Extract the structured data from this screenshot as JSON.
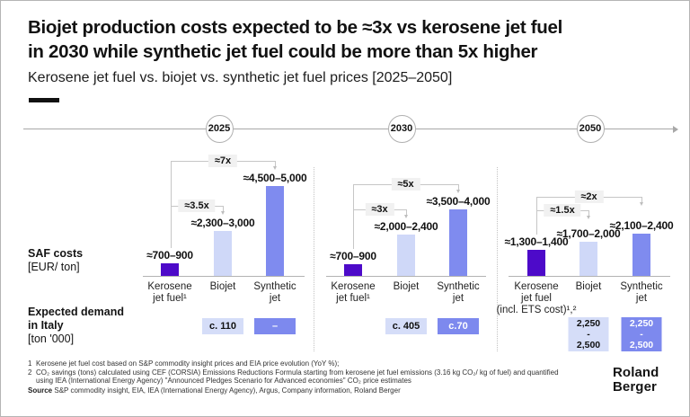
{
  "header": {
    "title_line1": "Biojet production costs expected to be ≈3x vs kerosene jet fuel",
    "title_line2": "in 2030 while synthetic jet fuel could be more than 5x higher",
    "subtitle": "Kerosene jet fuel vs. biojet vs. synthetic jet fuel prices [2025–2050]"
  },
  "row_labels": {
    "saf_title": "SAF costs",
    "saf_unit": "[EUR/ ton]",
    "demand_line1": "Expected demand",
    "demand_line2": "in Italy",
    "demand_unit": "[ton '000]"
  },
  "colors": {
    "kerosene_bar": "#4D0AC9",
    "biojet_bar": "#CFD8F8",
    "synthetic_bar": "#7F8BEF",
    "demand_light_box": "#D5DDF8",
    "demand_dark_box": "#7D89EE",
    "demand_dark_text": "#FFFFFF",
    "demand_light_text": "#111111"
  },
  "chart_data": {
    "type": "bar",
    "title": "Kerosene jet fuel vs. biojet vs. synthetic jet fuel prices [2025–2050]",
    "ylabel": "SAF costs [EUR/ ton]",
    "unit": "EUR per ton",
    "legend_position": "none",
    "grid": false,
    "groups": [
      {
        "year": "2025",
        "bars": [
          {
            "name": "kerosene",
            "category_lines": [
              "Kerosene",
              "jet fuel¹"
            ],
            "value_label": "≈700–900",
            "low": 700,
            "high": 900
          },
          {
            "name": "biojet",
            "category_lines": [
              "Biojet"
            ],
            "value_label": "≈2,300–3,000",
            "low": 2300,
            "high": 3000
          },
          {
            "name": "synthetic",
            "category_lines": [
              "Synthetic",
              "jet"
            ],
            "value_label": "≈4,500–5,000",
            "low": 4500,
            "high": 5000
          }
        ],
        "multipliers": [
          {
            "label": "≈3.5x",
            "from": "kerosene",
            "to": "biojet"
          },
          {
            "label": "≈7x",
            "from": "kerosene",
            "to": "synthetic"
          }
        ],
        "demand": [
          {
            "under": "biojet",
            "lines": [
              "c. 110"
            ],
            "style": "light"
          },
          {
            "under": "synthetic",
            "lines": [
              "–"
            ],
            "style": "dark"
          }
        ]
      },
      {
        "year": "2030",
        "bars": [
          {
            "name": "kerosene",
            "category_lines": [
              "Kerosene",
              "jet fuel¹"
            ],
            "value_label": "≈700–900",
            "low": 700,
            "high": 900
          },
          {
            "name": "biojet",
            "category_lines": [
              "Biojet"
            ],
            "value_label": "≈2,000–2,400",
            "low": 2000,
            "high": 2400
          },
          {
            "name": "synthetic",
            "category_lines": [
              "Synthetic",
              "jet"
            ],
            "value_label": "≈3,500–4,000",
            "low": 3500,
            "high": 4000
          }
        ],
        "multipliers": [
          {
            "label": "≈3x",
            "from": "kerosene",
            "to": "biojet"
          },
          {
            "label": "≈5x",
            "from": "kerosene",
            "to": "synthetic"
          }
        ],
        "demand": [
          {
            "under": "biojet",
            "lines": [
              "c. 405"
            ],
            "style": "light"
          },
          {
            "under": "synthetic",
            "lines": [
              "c.70"
            ],
            "style": "dark"
          }
        ]
      },
      {
        "year": "2050",
        "bars": [
          {
            "name": "kerosene",
            "category_lines": [
              "Kerosene",
              "jet fuel",
              "(incl. ETS cost)¹,²"
            ],
            "value_label": "≈1,300–1,400",
            "low": 1300,
            "high": 1400
          },
          {
            "name": "biojet",
            "category_lines": [
              "Biojet"
            ],
            "value_label": "≈1,700–2,000",
            "low": 1700,
            "high": 2000
          },
          {
            "name": "synthetic",
            "category_lines": [
              "Synthetic",
              "jet"
            ],
            "value_label": "≈2,100–2,400",
            "low": 2100,
            "high": 2400
          }
        ],
        "multipliers": [
          {
            "label": "≈1.5x",
            "from": "kerosene",
            "to": "biojet"
          },
          {
            "label": "≈2x",
            "from": "kerosene",
            "to": "synthetic"
          }
        ],
        "demand": [
          {
            "under": "biojet",
            "lines": [
              "2,250",
              "-",
              "2,500"
            ],
            "style": "light"
          },
          {
            "under": "synthetic",
            "lines": [
              "2,250",
              "-",
              "2,500"
            ],
            "style": "dark"
          }
        ]
      }
    ]
  },
  "footnotes": [
    {
      "num": "1",
      "text": "Kerosene jet fuel cost based on S&P commodity insight prices and EIA price evolution (YoY %);"
    },
    {
      "num": "2",
      "text": "CO₂ savings (tons) calculated using CEF (CORSIA) Emissions Reductions Formula starting from kerosene jet fuel emissions (3.16 kg CO₂/ kg of fuel) and quantified using IEA (International Energy Agency) \"Announced Pledges Scenario for Advanced economies\" CO₂ price estimates"
    }
  ],
  "source": {
    "label": "Source",
    "text": "S&P commodity insight, EIA, IEA (International Energy Agency), Argus, Company information, Roland Berger"
  },
  "logo": {
    "line1": "Roland",
    "line2": "Berger"
  }
}
